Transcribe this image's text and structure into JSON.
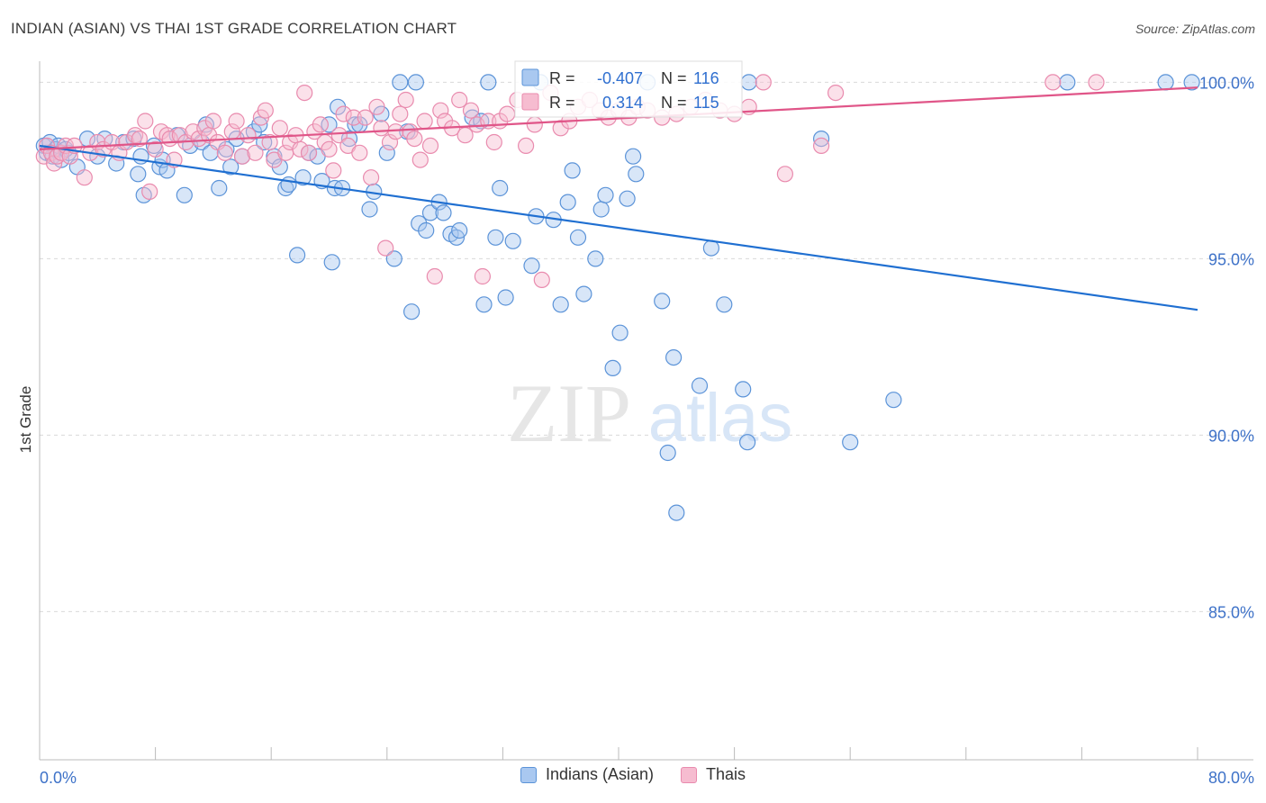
{
  "title": "INDIAN (ASIAN) VS THAI 1ST GRADE CORRELATION CHART",
  "source": "Source: ZipAtlas.com",
  "watermark": {
    "zip": "ZIP",
    "atlas": "atlas"
  },
  "colors": {
    "blue": "#1f6fd1",
    "blue_fill": "#a9c8f0",
    "blue_stroke": "#5b93d8",
    "pink": "#e05588",
    "pink_fill": "#f6bcd0",
    "pink_stroke": "#e98bae",
    "tick_label": "#3e72c8",
    "grid": "#d9d9d9"
  },
  "stats": [
    {
      "r_label": "R =",
      "r_value": "-0.407",
      "n_label": "N =",
      "n_value": "116"
    },
    {
      "r_label": "R =",
      "r_value": "0.314",
      "n_label": "N =",
      "n_value": "115"
    }
  ],
  "chart_data": {
    "type": "scatter",
    "title": "INDIAN (ASIAN) VS THAI 1ST GRADE CORRELATION CHART",
    "xlabel": "",
    "ylabel": "1st Grade",
    "xlim": [
      0,
      80
    ],
    "ylim": [
      80.8,
      100.8
    ],
    "x_tick_labels": [
      "0.0%",
      "80.0%"
    ],
    "y_ticks": [
      85,
      90,
      95,
      100
    ],
    "y_tick_labels": [
      "85.0%",
      "90.0%",
      "95.0%",
      "100.0%"
    ],
    "grid": "horizontal dashed",
    "legend_position": "bottom-center",
    "series": [
      {
        "name": "Indians (Asian)",
        "color": "#1f6fd1",
        "trend": {
          "x": [
            0,
            80
          ],
          "y": [
            98.2,
            93.55
          ]
        },
        "points": [
          [
            0.3,
            98.2
          ],
          [
            0.5,
            98.0
          ],
          [
            0.7,
            98.3
          ],
          [
            0.9,
            97.9
          ],
          [
            1.1,
            98.1
          ],
          [
            1.3,
            98.2
          ],
          [
            1.5,
            97.8
          ],
          [
            1.8,
            98.1
          ],
          [
            2.0,
            98.0
          ],
          [
            2.6,
            97.6
          ],
          [
            3.3,
            98.4
          ],
          [
            4.0,
            97.9
          ],
          [
            4.5,
            98.4
          ],
          [
            5.3,
            97.7
          ],
          [
            5.8,
            98.3
          ],
          [
            6.5,
            98.4
          ],
          [
            6.8,
            97.4
          ],
          [
            7.0,
            97.9
          ],
          [
            7.2,
            96.8
          ],
          [
            7.9,
            98.2
          ],
          [
            8.3,
            97.6
          ],
          [
            8.5,
            97.8
          ],
          [
            8.8,
            97.5
          ],
          [
            9.5,
            98.5
          ],
          [
            10.0,
            96.8
          ],
          [
            10.4,
            98.2
          ],
          [
            11.2,
            98.3
          ],
          [
            11.5,
            98.8
          ],
          [
            11.8,
            98.0
          ],
          [
            12.4,
            97.0
          ],
          [
            12.9,
            98.1
          ],
          [
            13.2,
            97.6
          ],
          [
            13.6,
            98.4
          ],
          [
            14.0,
            97.9
          ],
          [
            14.8,
            98.6
          ],
          [
            15.2,
            98.8
          ],
          [
            15.5,
            98.3
          ],
          [
            16.2,
            97.9
          ],
          [
            16.6,
            97.6
          ],
          [
            17.0,
            97.0
          ],
          [
            17.2,
            97.1
          ],
          [
            17.8,
            95.1
          ],
          [
            18.2,
            97.3
          ],
          [
            18.6,
            98.0
          ],
          [
            19.2,
            97.9
          ],
          [
            19.5,
            97.2
          ],
          [
            20.0,
            98.8
          ],
          [
            20.2,
            94.9
          ],
          [
            20.4,
            97.0
          ],
          [
            20.6,
            99.3
          ],
          [
            20.9,
            97.0
          ],
          [
            21.4,
            98.4
          ],
          [
            21.8,
            98.8
          ],
          [
            22.1,
            98.8
          ],
          [
            22.8,
            96.4
          ],
          [
            23.1,
            96.9
          ],
          [
            23.6,
            99.1
          ],
          [
            24.0,
            98.0
          ],
          [
            24.5,
            95.0
          ],
          [
            24.9,
            100.0
          ],
          [
            25.4,
            98.6
          ],
          [
            25.7,
            93.5
          ],
          [
            26.0,
            100.0
          ],
          [
            26.2,
            96.0
          ],
          [
            26.7,
            95.8
          ],
          [
            27.0,
            96.3
          ],
          [
            27.6,
            96.6
          ],
          [
            27.9,
            96.3
          ],
          [
            28.4,
            95.7
          ],
          [
            28.8,
            95.6
          ],
          [
            29.0,
            95.8
          ],
          [
            29.9,
            99.0
          ],
          [
            30.5,
            98.9
          ],
          [
            30.7,
            93.7
          ],
          [
            31.0,
            100.0
          ],
          [
            31.5,
            95.6
          ],
          [
            31.8,
            97.0
          ],
          [
            32.2,
            93.9
          ],
          [
            32.7,
            95.5
          ],
          [
            34.0,
            94.8
          ],
          [
            34.3,
            96.2
          ],
          [
            34.6,
            100.0
          ],
          [
            35.5,
            96.1
          ],
          [
            36.0,
            93.7
          ],
          [
            36.5,
            96.6
          ],
          [
            36.8,
            97.5
          ],
          [
            37.2,
            95.6
          ],
          [
            37.6,
            94.0
          ],
          [
            38.4,
            95.0
          ],
          [
            38.8,
            96.4
          ],
          [
            39.1,
            96.8
          ],
          [
            39.6,
            91.9
          ],
          [
            40.1,
            92.9
          ],
          [
            40.6,
            96.7
          ],
          [
            41.0,
            97.9
          ],
          [
            41.2,
            97.4
          ],
          [
            42.0,
            100.0
          ],
          [
            43.0,
            93.8
          ],
          [
            43.4,
            89.5
          ],
          [
            43.8,
            92.2
          ],
          [
            44.0,
            87.8
          ],
          [
            45.6,
            91.4
          ],
          [
            46.4,
            95.3
          ],
          [
            47.3,
            93.7
          ],
          [
            48.6,
            91.3
          ],
          [
            48.9,
            89.8
          ],
          [
            49.0,
            100.0
          ],
          [
            54.0,
            98.4
          ],
          [
            56.0,
            89.8
          ],
          [
            59.0,
            91.0
          ],
          [
            71.0,
            100.0
          ],
          [
            77.8,
            100.0
          ],
          [
            79.6,
            100.0
          ]
        ]
      },
      {
        "name": "Thais",
        "color": "#e05588",
        "trend": {
          "x": [
            0,
            80
          ],
          "y": [
            98.1,
            99.85
          ]
        },
        "points": [
          [
            0.3,
            97.9
          ],
          [
            0.5,
            98.2
          ],
          [
            0.8,
            98.0
          ],
          [
            1.0,
            97.7
          ],
          [
            1.2,
            97.9
          ],
          [
            1.5,
            98.0
          ],
          [
            1.8,
            98.2
          ],
          [
            2.1,
            97.9
          ],
          [
            2.4,
            98.2
          ],
          [
            3.1,
            97.3
          ],
          [
            3.5,
            98.0
          ],
          [
            4.0,
            98.3
          ],
          [
            4.4,
            98.1
          ],
          [
            5.0,
            98.3
          ],
          [
            5.5,
            98.0
          ],
          [
            6.0,
            98.3
          ],
          [
            6.6,
            98.5
          ],
          [
            6.9,
            98.4
          ],
          [
            7.3,
            98.9
          ],
          [
            7.6,
            96.9
          ],
          [
            8.0,
            98.1
          ],
          [
            8.4,
            98.6
          ],
          [
            8.8,
            98.5
          ],
          [
            9.0,
            98.4
          ],
          [
            9.3,
            97.8
          ],
          [
            9.7,
            98.5
          ],
          [
            10.1,
            98.3
          ],
          [
            10.6,
            98.6
          ],
          [
            11.0,
            98.4
          ],
          [
            11.4,
            98.7
          ],
          [
            11.7,
            98.5
          ],
          [
            12.0,
            98.9
          ],
          [
            12.3,
            98.3
          ],
          [
            12.8,
            98.0
          ],
          [
            13.3,
            98.6
          ],
          [
            13.6,
            98.9
          ],
          [
            14.0,
            97.9
          ],
          [
            14.4,
            98.5
          ],
          [
            14.9,
            98.0
          ],
          [
            15.3,
            99.0
          ],
          [
            15.6,
            99.2
          ],
          [
            15.9,
            98.3
          ],
          [
            16.2,
            97.8
          ],
          [
            16.6,
            98.7
          ],
          [
            17.0,
            98.0
          ],
          [
            17.3,
            98.3
          ],
          [
            17.7,
            98.5
          ],
          [
            18.0,
            98.1
          ],
          [
            18.3,
            99.7
          ],
          [
            18.6,
            98.0
          ],
          [
            19.0,
            98.6
          ],
          [
            19.4,
            98.8
          ],
          [
            19.7,
            98.3
          ],
          [
            20.0,
            98.1
          ],
          [
            20.3,
            97.5
          ],
          [
            20.7,
            98.5
          ],
          [
            21.0,
            99.1
          ],
          [
            21.3,
            98.2
          ],
          [
            21.7,
            99.0
          ],
          [
            22.1,
            98.0
          ],
          [
            22.5,
            99.0
          ],
          [
            22.9,
            97.3
          ],
          [
            23.3,
            99.3
          ],
          [
            23.6,
            98.7
          ],
          [
            23.9,
            95.3
          ],
          [
            24.2,
            98.3
          ],
          [
            24.6,
            98.6
          ],
          [
            24.9,
            99.1
          ],
          [
            25.3,
            99.5
          ],
          [
            25.6,
            98.6
          ],
          [
            25.9,
            98.4
          ],
          [
            26.3,
            97.8
          ],
          [
            26.6,
            98.9
          ],
          [
            27.0,
            98.2
          ],
          [
            27.3,
            94.5
          ],
          [
            27.7,
            99.2
          ],
          [
            28.0,
            98.9
          ],
          [
            28.5,
            98.7
          ],
          [
            29.0,
            99.5
          ],
          [
            29.4,
            98.5
          ],
          [
            29.8,
            99.2
          ],
          [
            30.2,
            98.8
          ],
          [
            30.6,
            94.5
          ],
          [
            31.0,
            98.9
          ],
          [
            31.4,
            98.3
          ],
          [
            31.8,
            98.9
          ],
          [
            32.3,
            99.1
          ],
          [
            33.0,
            99.5
          ],
          [
            33.6,
            98.2
          ],
          [
            34.2,
            98.8
          ],
          [
            34.7,
            94.4
          ],
          [
            35.3,
            99.7
          ],
          [
            36.0,
            98.7
          ],
          [
            36.6,
            98.9
          ],
          [
            37.2,
            99.3
          ],
          [
            38.0,
            99.5
          ],
          [
            38.7,
            99.2
          ],
          [
            39.3,
            99.0
          ],
          [
            40.0,
            99.2
          ],
          [
            40.7,
            99.0
          ],
          [
            41.3,
            99.3
          ],
          [
            42.0,
            99.2
          ],
          [
            43.0,
            99.0
          ],
          [
            44.0,
            99.1
          ],
          [
            45.0,
            99.3
          ],
          [
            46.0,
            99.5
          ],
          [
            47.0,
            99.2
          ],
          [
            48.0,
            99.1
          ],
          [
            49.0,
            99.3
          ],
          [
            50.0,
            100.0
          ],
          [
            51.5,
            97.4
          ],
          [
            54.0,
            98.2
          ],
          [
            55.0,
            99.7
          ],
          [
            70.0,
            100.0
          ],
          [
            73.0,
            100.0
          ]
        ]
      }
    ]
  }
}
